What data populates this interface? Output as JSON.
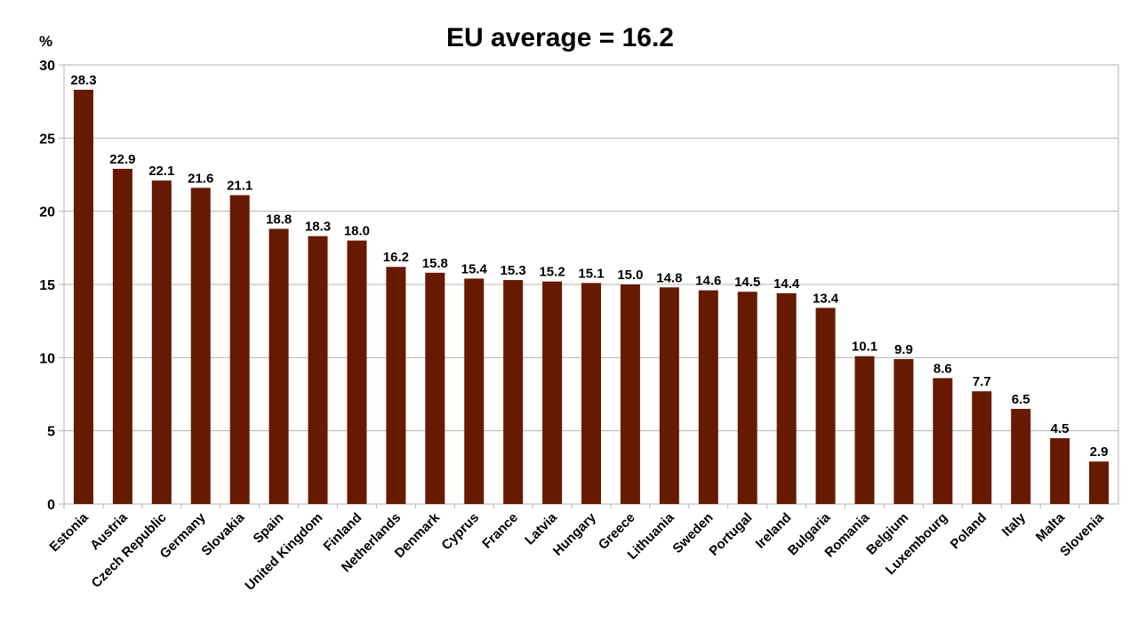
{
  "chart_data": {
    "type": "bar",
    "title": "EU average = 16.2",
    "ylabel": "%",
    "xlabel": "",
    "ylim": [
      0,
      30
    ],
    "yticks": [
      0,
      5,
      10,
      15,
      20,
      25,
      30
    ],
    "grid": true,
    "legend": "none",
    "categories": [
      "Estonia",
      "Austria",
      "Czech Republic",
      "Germany",
      "Slovakia",
      "Spain",
      "United Kingdom",
      "Finland",
      "Netherlands",
      "Denmark",
      "Cyprus",
      "France",
      "Latvia",
      "Hungary",
      "Greece",
      "Lithuania",
      "Sweden",
      "Portugal",
      "Ireland",
      "Bulgaria",
      "Romania",
      "Belgium",
      "Luxembourg",
      "Poland",
      "Italy",
      "Malta",
      "Slovenia"
    ],
    "values": [
      28.3,
      22.9,
      22.1,
      21.6,
      21.1,
      18.8,
      18.3,
      18.0,
      16.2,
      15.8,
      15.4,
      15.3,
      15.2,
      15.1,
      15.0,
      14.8,
      14.6,
      14.5,
      14.4,
      13.4,
      10.1,
      9.9,
      8.6,
      7.7,
      6.5,
      4.5,
      2.9
    ],
    "value_labels": [
      "28.3",
      "22.9",
      "22.1",
      "21.6",
      "21.1",
      "18.8",
      "18.3",
      "18.0",
      "16.2",
      "15.8",
      "15.4",
      "15.3",
      "15.2",
      "15.1",
      "15.0",
      "14.8",
      "14.6",
      "14.5",
      "14.4",
      "13.4",
      "10.1",
      "9.9",
      "8.6",
      "7.7",
      "6.5",
      "4.5",
      "2.9"
    ],
    "bar_color": "#661a00"
  }
}
